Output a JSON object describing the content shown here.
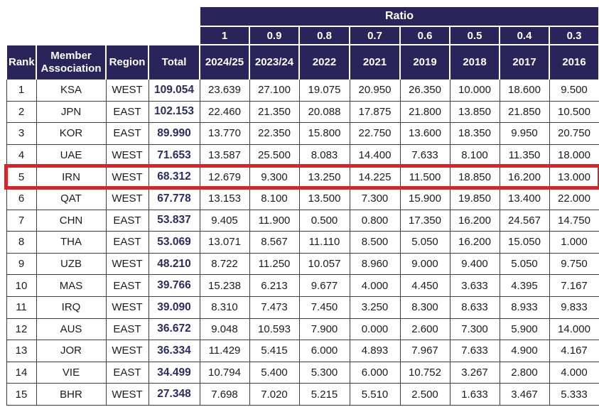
{
  "colors": {
    "header_bg": "#29245a",
    "header_text": "#ffffff",
    "grid_line": "#3c3c3c",
    "data_text": "#1b1b1b",
    "total_text": "#2b2c5e",
    "highlight_border": "#d0262c"
  },
  "chart_data": {
    "type": "table",
    "ratio_banner": "Ratio",
    "ratio_values": [
      "1",
      "0.9",
      "0.8",
      "0.7",
      "0.6",
      "0.5",
      "0.4",
      "0.3"
    ],
    "columns": [
      "Rank",
      "Member Association",
      "Region",
      "Total",
      "2024/25",
      "2023/24",
      "2022",
      "2021",
      "2019",
      "2018",
      "2017",
      "2016"
    ],
    "highlighted_row_rank": "5",
    "rows": [
      {
        "rank": "1",
        "association": "KSA",
        "region": "WEST",
        "total": "109.054",
        "values": [
          "23.639",
          "27.100",
          "19.075",
          "20.950",
          "26.350",
          "10.000",
          "18.600",
          "9.500"
        ],
        "highlighted": false
      },
      {
        "rank": "2",
        "association": "JPN",
        "region": "EAST",
        "total": "102.153",
        "values": [
          "22.460",
          "21.350",
          "20.088",
          "17.875",
          "21.800",
          "13.850",
          "21.850",
          "10.500"
        ],
        "highlighted": false
      },
      {
        "rank": "3",
        "association": "KOR",
        "region": "EAST",
        "total": "89.990",
        "values": [
          "13.770",
          "22.350",
          "15.800",
          "22.750",
          "13.600",
          "18.350",
          "9.950",
          "20.750"
        ],
        "highlighted": false
      },
      {
        "rank": "4",
        "association": "UAE",
        "region": "WEST",
        "total": "71.653",
        "values": [
          "13.587",
          "25.500",
          "8.083",
          "14.400",
          "7.633",
          "8.100",
          "11.350",
          "18.000"
        ],
        "highlighted": false
      },
      {
        "rank": "5",
        "association": "IRN",
        "region": "WEST",
        "total": "68.312",
        "values": [
          "12.679",
          "9.300",
          "13.250",
          "14.225",
          "11.500",
          "18.850",
          "16.200",
          "13.000"
        ],
        "highlighted": true
      },
      {
        "rank": "6",
        "association": "QAT",
        "region": "WEST",
        "total": "67.778",
        "values": [
          "13.153",
          "8.100",
          "13.500",
          "7.300",
          "15.900",
          "19.850",
          "13.400",
          "22.000"
        ],
        "highlighted": false
      },
      {
        "rank": "7",
        "association": "CHN",
        "region": "EAST",
        "total": "53.837",
        "values": [
          "9.405",
          "11.900",
          "0.500",
          "0.800",
          "17.350",
          "16.200",
          "24.567",
          "14.750"
        ],
        "highlighted": false
      },
      {
        "rank": "8",
        "association": "THA",
        "region": "EAST",
        "total": "53.069",
        "values": [
          "13.071",
          "8.567",
          "11.110",
          "8.500",
          "5.050",
          "16.200",
          "15.050",
          "1.000"
        ],
        "highlighted": false
      },
      {
        "rank": "9",
        "association": "UZB",
        "region": "WEST",
        "total": "48.210",
        "values": [
          "8.722",
          "11.250",
          "10.057",
          "8.960",
          "9.000",
          "9.400",
          "5.050",
          "9.750"
        ],
        "highlighted": false
      },
      {
        "rank": "10",
        "association": "MAS",
        "region": "EAST",
        "total": "39.766",
        "values": [
          "15.238",
          "6.213",
          "9.677",
          "4.000",
          "4.450",
          "3.633",
          "4.395",
          "7.167"
        ],
        "highlighted": false
      },
      {
        "rank": "11",
        "association": "IRQ",
        "region": "WEST",
        "total": "39.090",
        "values": [
          "8.310",
          "7.473",
          "7.450",
          "3.250",
          "8.300",
          "8.633",
          "8.933",
          "9.833"
        ],
        "highlighted": false
      },
      {
        "rank": "12",
        "association": "AUS",
        "region": "EAST",
        "total": "36.672",
        "values": [
          "9.048",
          "10.593",
          "7.900",
          "0.000",
          "2.600",
          "7.300",
          "5.900",
          "14.000"
        ],
        "highlighted": false
      },
      {
        "rank": "13",
        "association": "JOR",
        "region": "WEST",
        "total": "36.334",
        "values": [
          "11.429",
          "5.415",
          "6.000",
          "4.893",
          "7.967",
          "7.633",
          "4.900",
          "4.167"
        ],
        "highlighted": false
      },
      {
        "rank": "14",
        "association": "VIE",
        "region": "EAST",
        "total": "34.499",
        "values": [
          "10.794",
          "5.400",
          "5.300",
          "6.000",
          "10.752",
          "3.267",
          "2.800",
          "4.000"
        ],
        "highlighted": false
      },
      {
        "rank": "15",
        "association": "BHR",
        "region": "WEST",
        "total": "27.348",
        "values": [
          "7.698",
          "7.020",
          "5.215",
          "5.510",
          "2.500",
          "1.633",
          "3.467",
          "5.333"
        ],
        "highlighted": false
      }
    ]
  }
}
